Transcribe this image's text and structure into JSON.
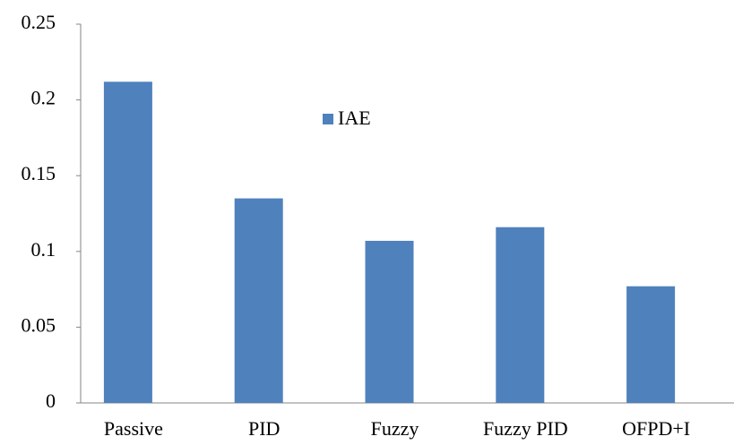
{
  "chart_data": {
    "type": "bar",
    "categories": [
      "Passive",
      "PID",
      "Fuzzy",
      "Fuzzy PID",
      "OFPD+I"
    ],
    "series": [
      {
        "name": "IAE",
        "color": "#4f81bd",
        "values": [
          0.212,
          0.135,
          0.107,
          0.116,
          0.077
        ]
      }
    ],
    "ylim": [
      0,
      0.25
    ],
    "yticks": [
      0,
      0.05,
      0.1,
      0.15,
      0.2,
      0.25
    ],
    "grid": false
  }
}
